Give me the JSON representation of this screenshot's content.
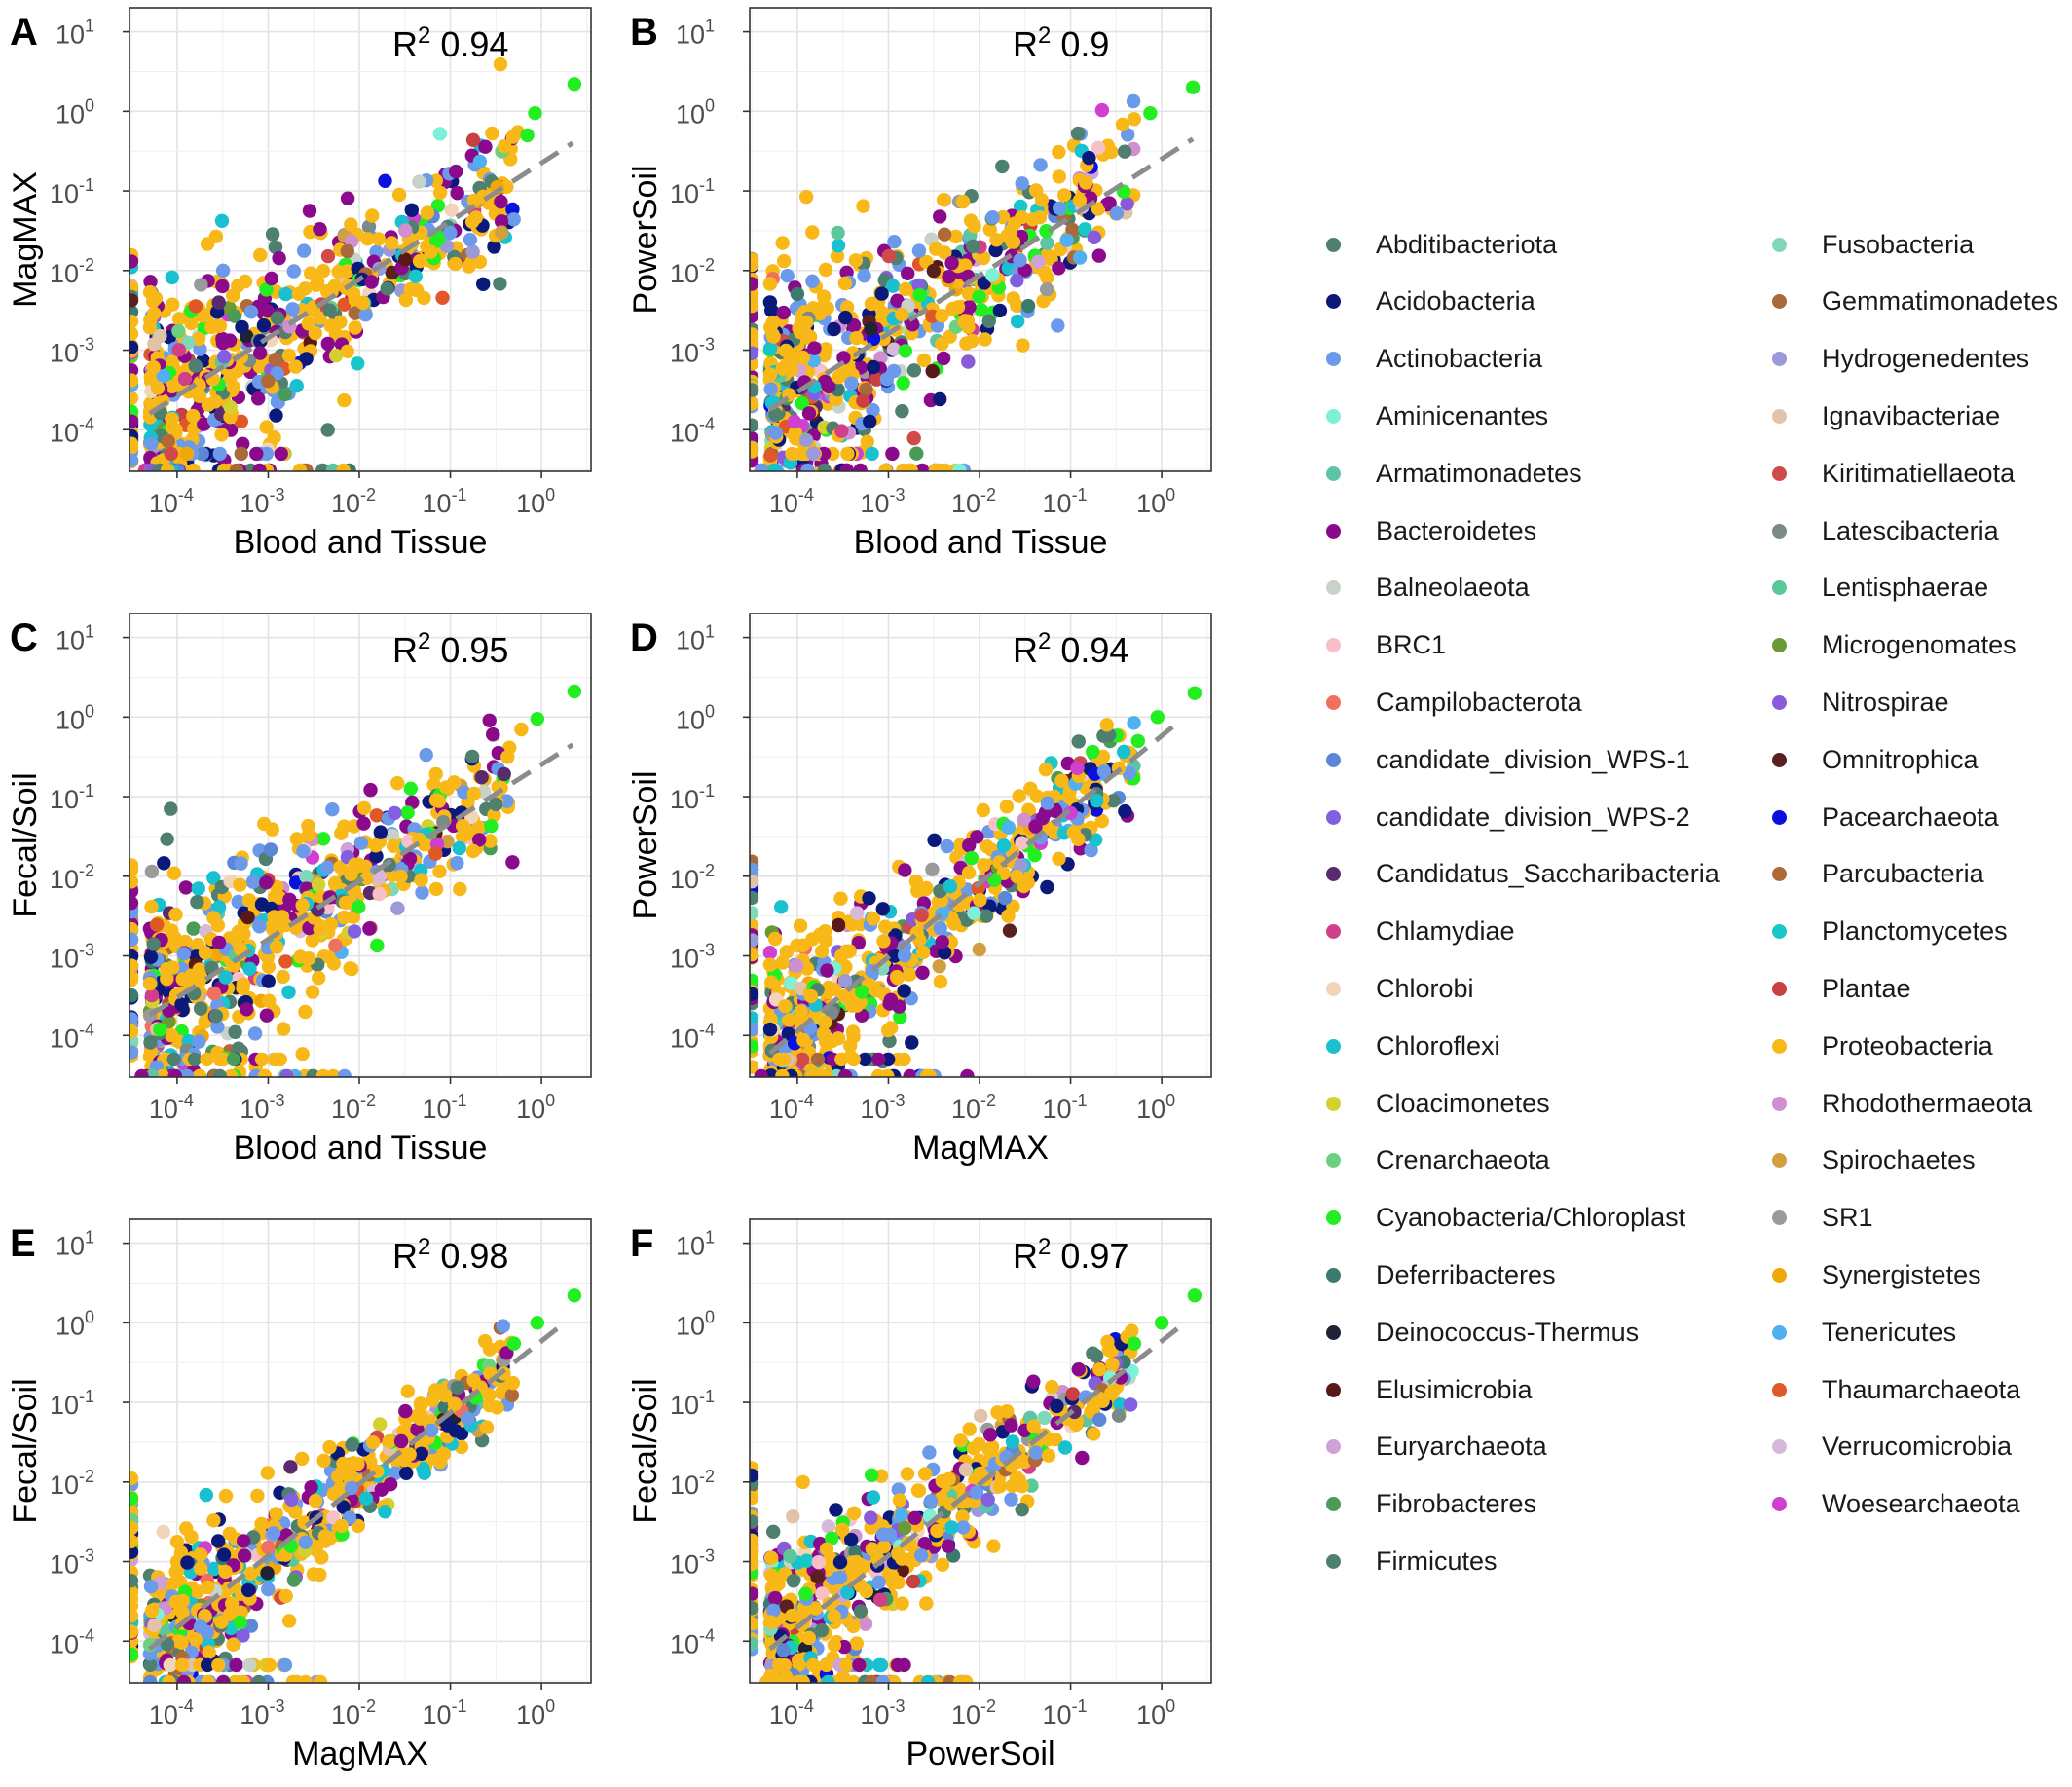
{
  "legend": [
    {
      "name": "Abditibacteriota",
      "color": "#4f7f6e"
    },
    {
      "name": "Acidobacteria",
      "color": "#0b1a7a"
    },
    {
      "name": "Actinobacteria",
      "color": "#6b9aea"
    },
    {
      "name": "Aminicenantes",
      "color": "#7ff0d8"
    },
    {
      "name": "Armatimonadetes",
      "color": "#5fc4a6"
    },
    {
      "name": "Bacteroidetes",
      "color": "#8b0a8b"
    },
    {
      "name": "Balneolaeota",
      "color": "#c7d3c9"
    },
    {
      "name": "BRC1",
      "color": "#f7c0c8"
    },
    {
      "name": "Campilobacterota",
      "color": "#f07060"
    },
    {
      "name": "candidate_division_WPS-1",
      "color": "#5a88d6"
    },
    {
      "name": "candidate_division_WPS-2",
      "color": "#8060e0"
    },
    {
      "name": "Candidatus_Saccharibacteria",
      "color": "#5a2a6e"
    },
    {
      "name": "Chlamydiae",
      "color": "#d0408a"
    },
    {
      "name": "Chlorobi",
      "color": "#f2d4b8"
    },
    {
      "name": "Chloroflexi",
      "color": "#18c0d0"
    },
    {
      "name": "Cloacimonetes",
      "color": "#d4d030"
    },
    {
      "name": "Crenarchaeota",
      "color": "#6cd080"
    },
    {
      "name": "Cyanobacteria/Chloroplast",
      "color": "#22ee22"
    },
    {
      "name": "Deferribacteres",
      "color": "#3b7a6e"
    },
    {
      "name": "Deinococcus-Thermus",
      "color": "#222236"
    },
    {
      "name": "Elusimicrobia",
      "color": "#5a1818"
    },
    {
      "name": "Euryarchaeota",
      "color": "#d0a0d8"
    },
    {
      "name": "Fibrobacteres",
      "color": "#4a9a58"
    },
    {
      "name": "Firmicutes",
      "color": "#4e8070"
    },
    {
      "name": "Fusobacteria",
      "color": "#80d8b8"
    },
    {
      "name": "Gemmatimonadetes",
      "color": "#a86a3a"
    },
    {
      "name": "Hydrogenedentes",
      "color": "#9a9ad8"
    },
    {
      "name": "Ignavibacteriae",
      "color": "#e2c2a8"
    },
    {
      "name": "Kiritimatiellaeota",
      "color": "#d04a4a"
    },
    {
      "name": "Latescibacteria",
      "color": "#7a8a88"
    },
    {
      "name": "Lentisphaerae",
      "color": "#5ac898"
    },
    {
      "name": "Microgenomates",
      "color": "#6a9a38"
    },
    {
      "name": "Nitrospirae",
      "color": "#8a5ad8"
    },
    {
      "name": "Omnitrophica",
      "color": "#5a2020"
    },
    {
      "name": "Pacearchaeota",
      "color": "#0a10e0"
    },
    {
      "name": "Parcubacteria",
      "color": "#b06a38"
    },
    {
      "name": "Planctomycetes",
      "color": "#18c8c8"
    },
    {
      "name": "Plantae",
      "color": "#c84040"
    },
    {
      "name": "Proteobacteria",
      "color": "#f8b818"
    },
    {
      "name": "Rhodothermaeota",
      "color": "#d090d0"
    },
    {
      "name": "Spirochaetes",
      "color": "#d0a040"
    },
    {
      "name": "SR1",
      "color": "#9a9a9a"
    },
    {
      "name": "Synergistetes",
      "color": "#f0a808"
    },
    {
      "name": "Tenericutes",
      "color": "#50b0f0"
    },
    {
      "name": "Thaumarchaeota",
      "color": "#e05828"
    },
    {
      "name": "Verrucomicrobia",
      "color": "#d8b8d8"
    },
    {
      "name": "Woesearchaeota",
      "color": "#d040d0"
    }
  ],
  "chart_data": [
    {
      "type": "scatter",
      "panel": "A",
      "xlabel": "Blood and Tissue",
      "ylabel": "MagMAX",
      "r2_prefix": "R",
      "r2_exp": "2",
      "r2": "0.94",
      "xscale": "log",
      "yscale": "log",
      "xlim": [
        3e-05,
        3.5
      ],
      "ylim": [
        3e-05,
        20
      ],
      "xticks": [
        0.0001,
        0.001,
        0.01,
        0.1,
        1
      ],
      "yticks": [
        0.0001,
        0.001,
        0.01,
        0.1,
        1,
        10
      ],
      "fit": {
        "x": [
          5e-05,
          2.2
        ],
        "y": [
          0.00016,
          0.4
        ]
      },
      "grid": true,
      "seed": 11,
      "points": [
        {
          "x": 2.3,
          "y": 2.2,
          "color": "#22ee22"
        },
        {
          "x": 0.85,
          "y": 0.95,
          "color": "#22ee22"
        },
        {
          "x": 0.55,
          "y": 0.55,
          "color": "#f8b818"
        },
        {
          "x": 0.7,
          "y": 0.5,
          "color": "#22ee22"
        }
      ]
    },
    {
      "type": "scatter",
      "panel": "B",
      "xlabel": "Blood and Tissue",
      "ylabel": "PowerSoil",
      "r2_prefix": "R",
      "r2_exp": "2",
      "r2": "0.9",
      "xscale": "log",
      "yscale": "log",
      "xlim": [
        3e-05,
        3.5
      ],
      "ylim": [
        3e-05,
        20
      ],
      "xticks": [
        0.0001,
        0.001,
        0.01,
        0.1,
        1
      ],
      "yticks": [
        0.0001,
        0.001,
        0.01,
        0.1,
        1,
        10
      ],
      "fit": {
        "x": [
          5e-05,
          2.2
        ],
        "y": [
          0.00018,
          0.45
        ]
      },
      "grid": true,
      "seed": 23,
      "points": [
        {
          "x": 2.2,
          "y": 2.0,
          "color": "#22ee22"
        },
        {
          "x": 0.75,
          "y": 0.95,
          "color": "#22ee22"
        },
        {
          "x": 0.5,
          "y": 0.8,
          "color": "#f8b818"
        }
      ]
    },
    {
      "type": "scatter",
      "panel": "C",
      "xlabel": "Blood and Tissue",
      "ylabel": "Fecal/Soil",
      "r2_prefix": "R",
      "r2_exp": "2",
      "r2": "0.95",
      "xscale": "log",
      "yscale": "log",
      "xlim": [
        3e-05,
        3.5
      ],
      "ylim": [
        3e-05,
        20
      ],
      "xticks": [
        0.0001,
        0.001,
        0.01,
        0.1,
        1
      ],
      "yticks": [
        0.0001,
        0.001,
        0.01,
        0.1,
        1,
        10
      ],
      "fit": {
        "x": [
          5e-05,
          2.2
        ],
        "y": [
          0.00018,
          0.45
        ]
      },
      "grid": true,
      "seed": 37,
      "points": [
        {
          "x": 2.3,
          "y": 2.1,
          "color": "#22ee22"
        },
        {
          "x": 0.9,
          "y": 0.95,
          "color": "#22ee22"
        },
        {
          "x": 0.6,
          "y": 0.7,
          "color": "#f8b818"
        }
      ]
    },
    {
      "type": "scatter",
      "panel": "D",
      "xlabel": "MagMAX",
      "ylabel": "PowerSoil",
      "r2_prefix": "R",
      "r2_exp": "2",
      "r2": "0.94",
      "xscale": "log",
      "yscale": "log",
      "xlim": [
        3e-05,
        3.5
      ],
      "ylim": [
        3e-05,
        20
      ],
      "xticks": [
        0.0001,
        0.001,
        0.01,
        0.1,
        1
      ],
      "yticks": [
        0.0001,
        0.001,
        0.01,
        0.1,
        1,
        10
      ],
      "fit": {
        "x": [
          5e-05,
          1.6
        ],
        "y": [
          6e-05,
          0.9
        ]
      },
      "grid": true,
      "seed": 41,
      "points": [
        {
          "x": 2.3,
          "y": 2.0,
          "color": "#22ee22"
        },
        {
          "x": 0.9,
          "y": 1.0,
          "color": "#22ee22"
        },
        {
          "x": 0.55,
          "y": 0.5,
          "color": "#22ee22"
        },
        {
          "x": 0.25,
          "y": 0.8,
          "color": "#f8b818"
        }
      ]
    },
    {
      "type": "scatter",
      "panel": "E",
      "xlabel": "MagMAX",
      "ylabel": "Fecal/Soil",
      "r2_prefix": "R",
      "r2_exp": "2",
      "r2": "0.98",
      "xscale": "log",
      "yscale": "log",
      "xlim": [
        3e-05,
        3.5
      ],
      "ylim": [
        3e-05,
        20
      ],
      "xticks": [
        0.0001,
        0.001,
        0.01,
        0.1,
        1
      ],
      "yticks": [
        0.0001,
        0.001,
        0.01,
        0.1,
        1,
        10
      ],
      "fit": {
        "x": [
          5e-05,
          1.6
        ],
        "y": [
          8e-05,
          0.9
        ]
      },
      "grid": true,
      "seed": 53,
      "points": [
        {
          "x": 2.3,
          "y": 2.2,
          "color": "#22ee22"
        },
        {
          "x": 0.9,
          "y": 1.0,
          "color": "#22ee22"
        },
        {
          "x": 0.5,
          "y": 0.55,
          "color": "#22ee22"
        }
      ]
    },
    {
      "type": "scatter",
      "panel": "F",
      "xlabel": "PowerSoil",
      "ylabel": "Fecal/Soil",
      "r2_prefix": "R",
      "r2_exp": "2",
      "r2": "0.97",
      "xscale": "log",
      "yscale": "log",
      "xlim": [
        3e-05,
        3.5
      ],
      "ylim": [
        3e-05,
        20
      ],
      "xticks": [
        0.0001,
        0.001,
        0.01,
        0.1,
        1
      ],
      "yticks": [
        0.0001,
        0.001,
        0.01,
        0.1,
        1,
        10
      ],
      "fit": {
        "x": [
          5e-05,
          1.6
        ],
        "y": [
          8e-05,
          0.9
        ]
      },
      "grid": true,
      "seed": 67,
      "points": [
        {
          "x": 2.3,
          "y": 2.2,
          "color": "#22ee22"
        },
        {
          "x": 1.0,
          "y": 1.0,
          "color": "#22ee22"
        },
        {
          "x": 0.5,
          "y": 0.55,
          "color": "#22ee22"
        }
      ]
    }
  ]
}
